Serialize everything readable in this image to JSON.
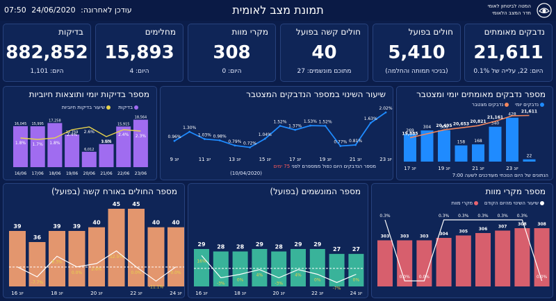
{
  "header": {
    "updated_label": "עודכן לאחרונה:",
    "updated_date": "24/06/2020",
    "updated_time": "07:50",
    "title": "תמונת מצב לאומית",
    "org_line1": "המטה לביטחון לאומי",
    "org_line2": "חדר המצב הלאומי"
  },
  "colors": {
    "background": "#0b1d4a",
    "panel": "#0f2557",
    "purple": "#a06cf0",
    "yellow": "#e8d44d",
    "blue": "#1f8bff",
    "orange": "#f2875e",
    "orange_bar": "#f5a070",
    "green": "#3dbfa0",
    "red": "#e8646f",
    "white": "#ffffff"
  },
  "kpis": [
    {
      "title": "נדבקים מאומתים",
      "value": "21,611",
      "sub": "היום: 22, עלייה של 0.1%"
    },
    {
      "title": "חולים בפועל",
      "value": "5,410",
      "sub": "(בניכוי תמותה והחלמה)"
    },
    {
      "title": "חולים קשה בפועל",
      "value": "40",
      "sub": "מתוכם מונשמים: 27"
    },
    {
      "title": "מקרי מוות",
      "value": "308",
      "sub": "היום: 0"
    },
    {
      "title": "מחלימים",
      "value": "15,893",
      "sub": "היום: 4"
    },
    {
      "title": "בדיקות",
      "value": "882,852",
      "sub": "היום: 1,101"
    }
  ],
  "panels": {
    "confirmed": {
      "title": "מספר נדבקים מאומתים יומי ומצטבר",
      "legend_daily": "נדבקים יומי",
      "legend_cumulative": "נדבקים מצטבר",
      "note": "הנתונים של היום הנוכחי מעודכנים לשעה 7:00"
    },
    "growth": {
      "title": "שיעור השינוי במספר הנדבקים המצטבר",
      "note_prefix": "מספר הנדבקים היום כפול ממספרם לפני",
      "note_days": "75 ימים",
      "note_date": "(10/04/2020)"
    },
    "tests": {
      "title": "מספר בדיקות יומי ותוצאות חיוביות",
      "legend_tests": "בדיקות",
      "legend_positive": "שיעור בדיקות חיוביות"
    },
    "severe": {
      "title": "מספר החולים באורח קשה (בפועל)"
    },
    "ventilated": {
      "title": "מספר המונשמים (בפועל)"
    },
    "deaths": {
      "title": "מספר מקרי מוות",
      "legend_deaths": "מקרי מוות",
      "legend_change": "שיעור השינוי מהיום הקודם"
    }
  },
  "chart_data": [
    {
      "id": "confirmed",
      "type": "bar",
      "title": "מספר נדבקים מאומתים יומי ומצטבר",
      "categories": [
        "17/06",
        "18/06",
        "19/06",
        "20/06",
        "21/06",
        "22/06",
        "23/06",
        "24/06"
      ],
      "x_ticks": [
        "יונ 17",
        "יונ 19",
        "יונ 21",
        "יונ 23"
      ],
      "series": [
        {
          "name": "נדבקים יומי",
          "type": "bar",
          "values": [
            269,
            304,
            306,
            158,
            168,
            340,
            428,
            22
          ]
        },
        {
          "name": "נדבקים מצטבר",
          "type": "line",
          "values": [
            19885,
            20189,
            20495,
            20653,
            20821,
            21161,
            21589,
            21611
          ],
          "labels": [
            "19,885",
            "",
            "20,495",
            "20,653",
            "20,821",
            "21,161",
            "",
            "21,611"
          ]
        }
      ]
    },
    {
      "id": "growth",
      "type": "line",
      "title": "שיעור השינוי במספר הנדבקים המצטבר",
      "x_ticks": [
        "יונ 9",
        "יונ 11",
        "יונ 13",
        "יונ 15",
        "יונ 17",
        "יונ 19",
        "יונ 21",
        "יונ 23"
      ],
      "values": [
        0.96,
        1.3,
        1.03,
        0.98,
        0.79,
        0.72,
        1.04,
        1.52,
        1.37,
        1.53,
        1.52,
        0.77,
        0.81,
        1.63,
        2.02
      ],
      "labels": [
        "0.96%",
        "1.30%",
        "1.03%",
        "0.98%",
        "0.79%",
        "0.72%",
        "1.04%",
        "1.52%",
        "1.37%",
        "1.53%",
        "1.52%",
        "0.77%",
        "0.81%",
        "1.63%",
        "2.02%"
      ],
      "unit": "%"
    },
    {
      "id": "tests",
      "type": "bar",
      "title": "מספר בדיקות יומי ותוצאות חיוביות",
      "categories": [
        "16/06",
        "17/06",
        "18/06",
        "19/06",
        "20/06",
        "21/06",
        "22/06",
        "23/06"
      ],
      "series": [
        {
          "name": "בדיקות",
          "type": "bar",
          "values": [
            16045,
            15995,
            17258,
            12759,
            6012,
            9028,
            15915,
            18564
          ],
          "labels": [
            "16,045",
            "15,995",
            "17,258",
            "12,759",
            "6,012",
            "9,028",
            "15,915",
            "18,564"
          ]
        },
        {
          "name": "שיעור בדיקות חיוביות",
          "type": "line",
          "values": [
            1.8,
            1.7,
            1.8,
            2.4,
            2.6,
            1.9,
            2.4,
            2.3
          ],
          "labels": [
            "1.8%",
            "1.7%",
            "1.8%",
            "2.4%",
            "2.6%",
            "1.9%",
            "2.4%",
            "2.3%"
          ]
        }
      ]
    },
    {
      "id": "severe",
      "type": "bar",
      "title": "מספר החולים באורח קשה (בפועל)",
      "x_ticks": [
        "יונ 16",
        "יונ 18",
        "יונ 20",
        "יונ 22",
        "יונ 24"
      ],
      "values": [
        39,
        36,
        39,
        39,
        40,
        45,
        45,
        40,
        40
      ],
      "change_labels": [
        "",
        "-7.7%",
        "8.3%",
        "0.0%",
        "2.6%",
        "12.5%",
        "0.0%",
        "-11.1%",
        "0.0%"
      ],
      "change_values": [
        0,
        -7.7,
        8.3,
        0.0,
        2.6,
        12.5,
        0.0,
        -11.1,
        0.0
      ]
    },
    {
      "id": "ventilated",
      "type": "bar",
      "title": "מספר המונשמים (בפועל)",
      "x_ticks": [
        "יונ 16",
        "יונ 18",
        "יונ 20",
        "יונ 22",
        "יונ 24"
      ],
      "values": [
        29,
        28,
        28,
        29,
        28,
        29,
        29,
        27,
        27
      ],
      "change_labels": [
        "16%",
        "-3%",
        "0%",
        "4%",
        "-3%",
        "4%",
        "0%",
        "-7%",
        "0%"
      ],
      "change_values": [
        16,
        -3,
        0,
        4,
        -3,
        4,
        0,
        -7,
        0
      ]
    },
    {
      "id": "deaths",
      "type": "bar",
      "title": "מספר מקרי מוות",
      "values": [
        303,
        303,
        303,
        304,
        305,
        306,
        307,
        308,
        308
      ],
      "change_labels": [
        "0.3%",
        "0.0%",
        "0.0%",
        "0.3%",
        "0.3%",
        "0.3%",
        "0.3%",
        "0.3%",
        "0.0%"
      ],
      "change_values": [
        0.3,
        0.0,
        0.0,
        0.3,
        0.3,
        0.3,
        0.3,
        0.3,
        0.0
      ]
    }
  ]
}
